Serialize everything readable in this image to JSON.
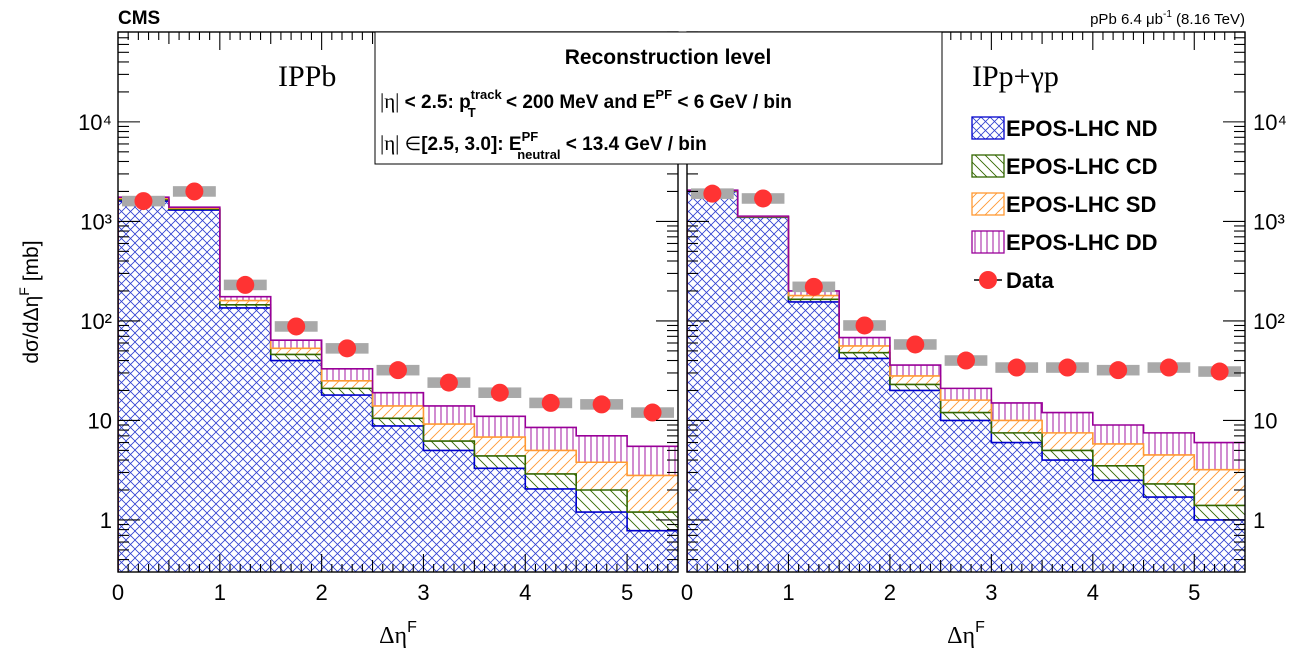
{
  "header": {
    "experiment": "CMS",
    "luminosity_prefix": "pPb 6.4 ",
    "luminosity_unit": "μb",
    "luminosity_exp": "-1",
    "energy": " (8.16 TeV)"
  },
  "textbox": {
    "title": "Reconstruction level",
    "line1_eta": "|η|",
    "line1_a": " < 2.5:  p",
    "line1_sup": "track",
    "line1_sub": "T",
    "line1_b": " < 200 MeV  and  E",
    "line1_sup2": "PF",
    "line1_c": " < 6 GeV / bin",
    "line2_eta": "|η|",
    "line2_in": " ∈",
    "line2_a": "[2.5, 3.0]:  E",
    "line2_sup": "PF",
    "line2_sub": "neutral",
    "line2_b": " < 13.4 GeV / bin"
  },
  "legend": [
    {
      "label": "EPOS-LHC ND",
      "color": "#0000cc",
      "pattern": "crosshatch"
    },
    {
      "label": "EPOS-LHC CD",
      "color": "#336600",
      "pattern": "diag-down"
    },
    {
      "label": "EPOS-LHC SD",
      "color": "#ff9933",
      "pattern": "diag-up"
    },
    {
      "label": "EPOS-LHC DD",
      "color": "#990099",
      "pattern": "vertical"
    },
    {
      "label": "Data",
      "color": "#ff3333",
      "pattern": "marker"
    }
  ],
  "chart_data": [
    {
      "type": "histogram",
      "panel_label": "IPPb",
      "xlabel": "Δη",
      "xlabel_sup": "F",
      "ylabel": "dσ/dΔη",
      "ylabel_sup": "F",
      "ylabel_unit": " [mb]",
      "xlim": [
        0,
        5.5
      ],
      "ylim": [
        0.3,
        80000
      ],
      "yscale": "log",
      "x_ticks": [
        "0",
        "1",
        "2",
        "3",
        "4",
        "5"
      ],
      "y_ticks": [
        "1",
        "10",
        "10²",
        "10³",
        "10⁴"
      ],
      "bin_edges": [
        0,
        0.5,
        1,
        1.5,
        2,
        2.5,
        3,
        3.5,
        4,
        4.5,
        5,
        5.5
      ],
      "series": [
        {
          "name": "EPOS-LHC ND",
          "values": [
            1600,
            1300,
            135,
            40,
            18,
            8.8,
            5.0,
            3.3,
            2.05,
            1.2,
            0.78
          ]
        },
        {
          "name": "EPOS-LHC CD",
          "values": [
            1650,
            1330,
            145,
            46,
            21,
            10.5,
            6.2,
            4.4,
            2.9,
            2.0,
            1.2
          ]
        },
        {
          "name": "EPOS-LHC SD",
          "values": [
            1700,
            1360,
            160,
            53,
            25,
            14.0,
            9.2,
            6.8,
            5.0,
            3.8,
            2.8
          ]
        },
        {
          "name": "EPOS-LHC DD",
          "values": [
            1750,
            1390,
            175,
            64,
            33,
            19.0,
            14.0,
            11.0,
            8.5,
            7.0,
            5.5
          ]
        },
        {
          "name": "Data",
          "values": [
            1600,
            2000,
            230,
            88,
            53,
            32,
            24,
            19,
            15,
            14.5,
            12
          ]
        }
      ]
    },
    {
      "type": "histogram",
      "panel_label": "IPp+γp",
      "xlabel": "Δη",
      "xlabel_sup": "F",
      "xlim": [
        0,
        5.5
      ],
      "ylim": [
        0.3,
        80000
      ],
      "yscale": "log",
      "x_ticks": [
        "0",
        "1",
        "2",
        "3",
        "4",
        "5"
      ],
      "y_ticks": [
        "1",
        "10",
        "10²",
        "10³",
        "10⁴"
      ],
      "bin_edges": [
        0,
        0.5,
        1,
        1.5,
        2,
        2.5,
        3,
        3.5,
        4,
        4.5,
        5,
        5.5
      ],
      "series": [
        {
          "name": "EPOS-LHC ND",
          "values": [
            2000,
            1100,
            155,
            42,
            20,
            10.0,
            6.0,
            4.0,
            2.5,
            1.7,
            1.0
          ]
        },
        {
          "name": "EPOS-LHC CD",
          "values": [
            2020,
            1110,
            165,
            48,
            23,
            12.0,
            7.5,
            5.0,
            3.5,
            2.3,
            1.4
          ]
        },
        {
          "name": "EPOS-LHC SD",
          "values": [
            2040,
            1120,
            180,
            56,
            28,
            16.0,
            10.0,
            7.5,
            5.8,
            4.5,
            3.2
          ]
        },
        {
          "name": "EPOS-LHC DD",
          "values": [
            2060,
            1130,
            200,
            68,
            36,
            21.0,
            15.0,
            12.0,
            9.0,
            7.5,
            6.0
          ]
        },
        {
          "name": "Data",
          "values": [
            1900,
            1700,
            220,
            90,
            58,
            40,
            34,
            34,
            32,
            34,
            31
          ]
        }
      ]
    }
  ]
}
